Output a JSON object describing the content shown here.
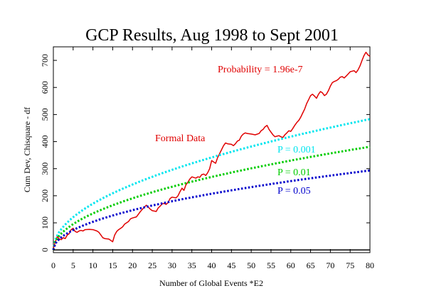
{
  "chart_data": {
    "type": "line",
    "title": "GCP Results, Aug 1998 to Sept 2001",
    "xlabel": "Number of Global Events  *E2",
    "ylabel": "Cum Dev, Chisquare - df",
    "xlim": [
      0,
      80
    ],
    "ylim": [
      -10,
      750
    ],
    "x_ticks": [
      0,
      5,
      10,
      15,
      20,
      25,
      30,
      35,
      40,
      45,
      50,
      55,
      60,
      65,
      70,
      75,
      80
    ],
    "y_ticks": [
      0,
      100,
      200,
      300,
      400,
      500,
      600,
      700
    ],
    "grid": false,
    "annotations": {
      "probability": "Probability = 1.96e-7",
      "formal_data": "Formal Data",
      "p001": "P = 0.001",
      "p01": "P = 0.01",
      "p05": "P = 0.05"
    },
    "series": [
      {
        "color": "#e00000",
        "style": "solid",
        "points": [
          [
            0,
            5
          ],
          [
            0.5,
            30
          ],
          [
            1,
            50
          ],
          [
            1.5,
            40
          ],
          [
            2,
            38
          ],
          [
            2.5,
            45
          ],
          [
            3,
            42
          ],
          [
            3.5,
            55
          ],
          [
            4,
            60
          ],
          [
            4.5,
            75
          ],
          [
            5,
            80
          ],
          [
            5.5,
            68
          ],
          [
            6,
            65
          ],
          [
            6.5,
            70
          ],
          [
            7,
            72
          ],
          [
            7.5,
            70
          ],
          [
            8,
            75
          ],
          [
            9,
            76
          ],
          [
            10,
            75
          ],
          [
            11,
            70
          ],
          [
            11.5,
            65
          ],
          [
            12,
            55
          ],
          [
            12.5,
            45
          ],
          [
            13,
            42
          ],
          [
            14,
            40
          ],
          [
            14.5,
            35
          ],
          [
            15,
            30
          ],
          [
            15.5,
            55
          ],
          [
            16,
            68
          ],
          [
            16.5,
            75
          ],
          [
            17,
            80
          ],
          [
            17.5,
            85
          ],
          [
            18,
            95
          ],
          [
            18.5,
            100
          ],
          [
            19,
            105
          ],
          [
            19.5,
            115
          ],
          [
            20,
            118
          ],
          [
            21,
            122
          ],
          [
            21.5,
            132
          ],
          [
            22,
            142
          ],
          [
            22.5,
            150
          ],
          [
            23,
            158
          ],
          [
            23.5,
            165
          ],
          [
            24,
            158
          ],
          [
            24.5,
            150
          ],
          [
            25,
            145
          ],
          [
            26,
            142
          ],
          [
            26.5,
            155
          ],
          [
            27,
            162
          ],
          [
            27.5,
            170
          ],
          [
            28,
            172
          ],
          [
            28.5,
            168
          ],
          [
            29,
            175
          ],
          [
            29.5,
            190
          ],
          [
            30,
            195
          ],
          [
            31,
            192
          ],
          [
            31.5,
            200
          ],
          [
            32,
            215
          ],
          [
            32.5,
            228
          ],
          [
            33,
            220
          ],
          [
            33.5,
            240
          ],
          [
            34,
            250
          ],
          [
            34.5,
            262
          ],
          [
            35,
            270
          ],
          [
            36,
            265
          ],
          [
            36.5,
            270
          ],
          [
            37,
            268
          ],
          [
            37.5,
            278
          ],
          [
            38,
            280
          ],
          [
            38.5,
            275
          ],
          [
            39,
            285
          ],
          [
            39.5,
            300
          ],
          [
            40,
            330
          ],
          [
            40.5,
            325
          ],
          [
            41,
            320
          ],
          [
            41.5,
            340
          ],
          [
            42,
            355
          ],
          [
            42.5,
            370
          ],
          [
            43,
            385
          ],
          [
            43.5,
            395
          ],
          [
            44,
            392
          ],
          [
            45,
            390
          ],
          [
            45.5,
            385
          ],
          [
            46,
            392
          ],
          [
            46.5,
            402
          ],
          [
            47,
            405
          ],
          [
            47.5,
            420
          ],
          [
            48,
            428
          ],
          [
            48.5,
            432
          ],
          [
            49,
            430
          ],
          [
            50,
            428
          ],
          [
            51,
            425
          ],
          [
            52,
            430
          ],
          [
            52.5,
            440
          ],
          [
            53,
            445
          ],
          [
            53.5,
            455
          ],
          [
            54,
            460
          ],
          [
            54.5,
            445
          ],
          [
            55,
            435
          ],
          [
            55.5,
            425
          ],
          [
            56,
            418
          ],
          [
            56.5,
            420
          ],
          [
            57,
            422
          ],
          [
            57.5,
            418
          ],
          [
            58,
            415
          ],
          [
            58.5,
            425
          ],
          [
            59,
            432
          ],
          [
            59.5,
            440
          ],
          [
            60,
            438
          ],
          [
            60.5,
            448
          ],
          [
            61,
            460
          ],
          [
            61.5,
            470
          ],
          [
            62,
            478
          ],
          [
            62.5,
            490
          ],
          [
            63,
            505
          ],
          [
            63.5,
            520
          ],
          [
            64,
            540
          ],
          [
            64.5,
            555
          ],
          [
            65,
            570
          ],
          [
            65.5,
            575
          ],
          [
            66,
            568
          ],
          [
            66.5,
            560
          ],
          [
            67,
            575
          ],
          [
            67.5,
            585
          ],
          [
            68,
            580
          ],
          [
            68.5,
            570
          ],
          [
            69,
            575
          ],
          [
            69.5,
            588
          ],
          [
            70,
            605
          ],
          [
            70.5,
            618
          ],
          [
            71,
            622
          ],
          [
            71.5,
            625
          ],
          [
            72,
            630
          ],
          [
            72.5,
            638
          ],
          [
            73,
            640
          ],
          [
            73.5,
            635
          ],
          [
            74,
            642
          ],
          [
            74.5,
            650
          ],
          [
            75,
            658
          ],
          [
            75.5,
            660
          ],
          [
            76,
            662
          ],
          [
            76.5,
            655
          ],
          [
            77,
            665
          ],
          [
            77.5,
            680
          ],
          [
            78,
            700
          ],
          [
            78.5,
            718
          ],
          [
            79,
            730
          ],
          [
            79.5,
            720
          ],
          [
            80,
            715
          ]
        ]
      },
      {
        "color": "#00e5ee",
        "style": "dotted",
        "formula": "sqrt",
        "coef": 54.0
      },
      {
        "color": "#00cc00",
        "style": "dotted",
        "formula": "sqrt",
        "coef": 42.6
      },
      {
        "color": "#0000cc",
        "style": "dotted",
        "formula": "sqrt",
        "coef": 32.8
      },
      {
        "color": "#000000",
        "style": "solid",
        "formula": "zero"
      }
    ]
  }
}
